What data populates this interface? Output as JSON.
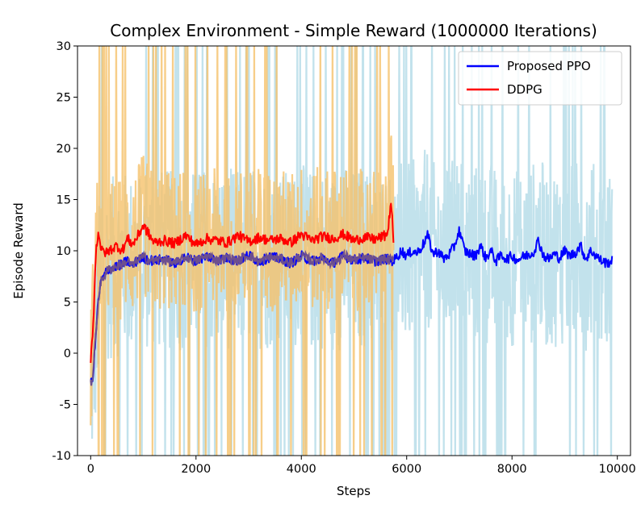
{
  "chart_data": {
    "type": "line",
    "title": "Complex Environment - Simple Reward (1000000 Iterations)",
    "xlabel": "Steps",
    "ylabel": "Episode Reward",
    "xlim": [
      -250,
      10250
    ],
    "ylim": [
      -10,
      30
    ],
    "x_ticks": [
      0,
      2000,
      4000,
      6000,
      8000,
      10000
    ],
    "y_ticks": [
      -10,
      -5,
      0,
      5,
      10,
      15,
      20,
      25,
      30
    ],
    "grid": false,
    "legend_position": "top-right",
    "series": [
      {
        "name": "Proposed PPO",
        "color": "#0000ff",
        "raw_color": "#add8e6",
        "x": [
          0,
          50,
          100,
          150,
          200,
          300,
          400,
          500,
          600,
          700,
          800,
          900,
          1000,
          1200,
          1400,
          1600,
          1800,
          2000,
          2200,
          2400,
          2600,
          2800,
          3000,
          3200,
          3400,
          3600,
          3800,
          4000,
          4200,
          4400,
          4600,
          4800,
          5000,
          5200,
          5400,
          5600,
          5750,
          5800,
          5900,
          6000,
          6100,
          6200,
          6300,
          6400,
          6500,
          6600,
          6700,
          6800,
          6900,
          7000,
          7100,
          7200,
          7300,
          7400,
          7500,
          7600,
          7700,
          7800,
          7900,
          8000,
          8100,
          8200,
          8300,
          8400,
          8500,
          8600,
          8700,
          8800,
          8900,
          9000,
          9100,
          9200,
          9300,
          9400,
          9500,
          9600,
          9700,
          9800,
          9900
        ],
        "y": [
          -3.0,
          -2.0,
          2.0,
          5.5,
          7.0,
          8.0,
          8.3,
          8.5,
          8.7,
          9.0,
          8.5,
          9.2,
          9.3,
          9.0,
          9.2,
          8.7,
          9.4,
          9.0,
          9.5,
          9.1,
          9.3,
          9.0,
          9.6,
          8.9,
          9.4,
          9.2,
          8.8,
          9.5,
          9.0,
          9.3,
          8.8,
          9.5,
          9.1,
          9.3,
          9.0,
          9.2,
          9.0,
          9.3,
          10.0,
          9.5,
          10.0,
          9.8,
          10.5,
          11.5,
          9.7,
          10.0,
          9.2,
          9.6,
          10.4,
          12.0,
          10.0,
          9.7,
          9.5,
          10.5,
          9.3,
          10.0,
          9.0,
          9.6,
          9.2,
          9.5,
          9.1,
          9.4,
          9.6,
          9.8,
          11.0,
          9.5,
          9.2,
          9.7,
          9.3,
          10.0,
          9.5,
          9.8,
          10.5,
          9.2,
          10.0,
          9.5,
          9.0,
          8.8,
          9.0
        ]
      },
      {
        "name": "DDPG",
        "color": "#ff0000",
        "raw_color": "#f5c26b",
        "x": [
          0,
          50,
          100,
          150,
          200,
          300,
          400,
          500,
          600,
          700,
          800,
          900,
          1000,
          1200,
          1400,
          1600,
          1800,
          2000,
          2200,
          2400,
          2600,
          2800,
          3000,
          3200,
          3400,
          3600,
          3800,
          4000,
          4200,
          4400,
          4600,
          4800,
          5000,
          5200,
          5400,
          5600,
          5650,
          5700,
          5750
        ],
        "y": [
          -0.5,
          3.0,
          10.0,
          12.0,
          10.0,
          9.8,
          10.2,
          10.5,
          10.0,
          11.2,
          10.6,
          11.5,
          12.5,
          10.8,
          11.0,
          10.7,
          11.5,
          10.6,
          11.2,
          11.0,
          10.8,
          11.5,
          10.9,
          11.3,
          11.0,
          11.2,
          10.8,
          11.6,
          11.0,
          11.4,
          11.2,
          11.6,
          11.0,
          11.3,
          11.1,
          11.5,
          12.0,
          15.0,
          11.0
        ]
      }
    ]
  }
}
